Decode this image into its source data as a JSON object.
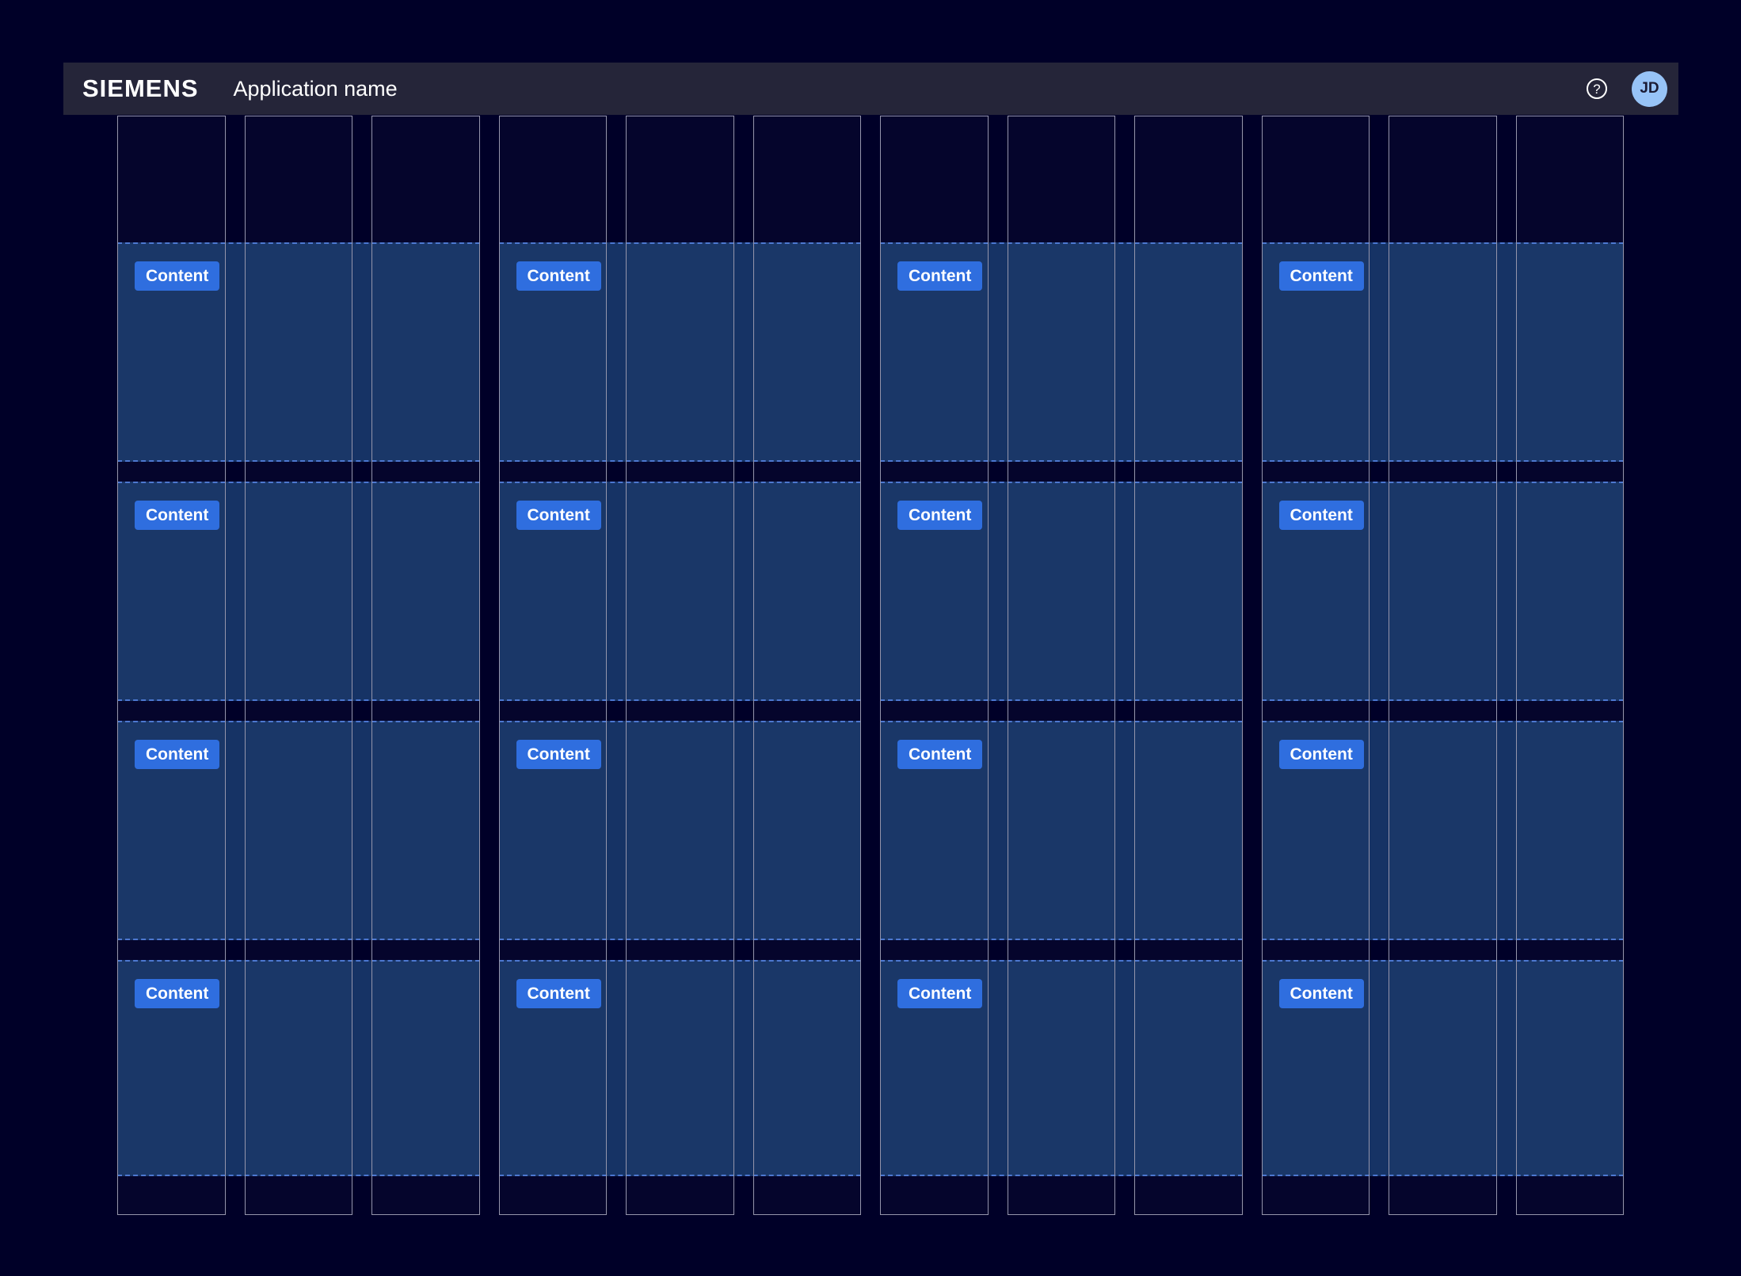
{
  "header": {
    "logo": "SIEMENS",
    "app_name": "Application name",
    "help_glyph": "?",
    "avatar_initials": "JD"
  },
  "grid": {
    "column_count": 12,
    "group_span": 3,
    "row_count": 4,
    "blocks": [
      {
        "row": 0,
        "group": 0,
        "label": "Content"
      },
      {
        "row": 0,
        "group": 1,
        "label": "Content"
      },
      {
        "row": 0,
        "group": 2,
        "label": "Content"
      },
      {
        "row": 0,
        "group": 3,
        "label": "Content"
      },
      {
        "row": 1,
        "group": 0,
        "label": "Content"
      },
      {
        "row": 1,
        "group": 1,
        "label": "Content"
      },
      {
        "row": 1,
        "group": 2,
        "label": "Content"
      },
      {
        "row": 1,
        "group": 3,
        "label": "Content"
      },
      {
        "row": 2,
        "group": 0,
        "label": "Content"
      },
      {
        "row": 2,
        "group": 1,
        "label": "Content"
      },
      {
        "row": 2,
        "group": 2,
        "label": "Content"
      },
      {
        "row": 2,
        "group": 3,
        "label": "Content"
      },
      {
        "row": 3,
        "group": 0,
        "label": "Content"
      },
      {
        "row": 3,
        "group": 1,
        "label": "Content"
      },
      {
        "row": 3,
        "group": 2,
        "label": "Content"
      },
      {
        "row": 3,
        "group": 3,
        "label": "Content"
      }
    ]
  },
  "colors": {
    "page_bg": "#000028",
    "header_bg": "#252539",
    "column_border": "#9595AB",
    "content_fill": "rgba(60,140,210,0.36)",
    "dashed_border": "#4A76D0",
    "accent": "#2B6CDF",
    "avatar_bg": "#97C3F7",
    "avatar_text": "#1B1B34"
  }
}
